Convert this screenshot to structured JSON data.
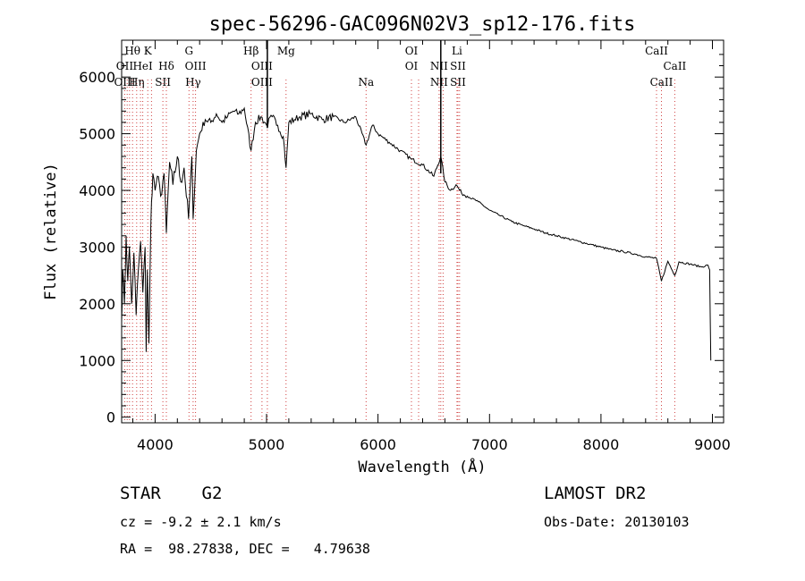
{
  "chart_data": {
    "type": "line",
    "title": "spec-56296-GAC096N02V3_sp12-176.fits",
    "xlabel": "Wavelength (Å)",
    "ylabel": "Flux (relative)",
    "xlim": [
      3700,
      9100
    ],
    "ylim": [
      -100,
      6650
    ],
    "xticks": [
      4000,
      5000,
      6000,
      7000,
      8000,
      9000
    ],
    "yticks": [
      0,
      1000,
      2000,
      3000,
      4000,
      5000,
      6000
    ],
    "grid": false,
    "series": [
      {
        "x": [
          3700,
          3710,
          3725,
          3740,
          3755,
          3770,
          3790,
          3810,
          3830,
          3850,
          3870,
          3890,
          3910,
          3920,
          3930,
          3945,
          3960,
          3968,
          3980,
          4000,
          4020,
          4050,
          4080,
          4101,
          4130,
          4160,
          4200,
          4230,
          4260,
          4300,
          4330,
          4341,
          4370,
          4400,
          4450,
          4500,
          4550,
          4600,
          4650,
          4700,
          4750,
          4800,
          4861,
          4900,
          4950,
          5000,
          5050,
          5100,
          5150,
          5175,
          5200,
          5250,
          5300,
          5400,
          5500,
          5600,
          5700,
          5800,
          5893,
          5950,
          6000,
          6100,
          6200,
          6300,
          6400,
          6500,
          6563,
          6600,
          6650,
          6700,
          6750,
          6800,
          6900,
          7000,
          7100,
          7200,
          7300,
          7400,
          7500,
          7600,
          7700,
          7800,
          7900,
          8000,
          8100,
          8200,
          8300,
          8400,
          8498,
          8542,
          8600,
          8662,
          8700,
          8800,
          8900,
          8960,
          8975,
          8985
        ],
        "y": [
          1700,
          2600,
          2000,
          3200,
          2400,
          3000,
          2000,
          2900,
          1800,
          2600,
          3100,
          2200,
          3000,
          1150,
          2600,
          1300,
          3200,
          3800,
          4300,
          4000,
          4250,
          3900,
          4300,
          3250,
          4500,
          4100,
          4600,
          4150,
          4400,
          3500,
          4600,
          3500,
          4700,
          5000,
          5250,
          5200,
          5350,
          5200,
          5300,
          5400,
          5350,
          5450,
          4700,
          5200,
          5300,
          5150,
          5300,
          5150,
          4950,
          4400,
          5200,
          5250,
          5300,
          5350,
          5250,
          5300,
          5200,
          5300,
          4800,
          5150,
          5000,
          4850,
          4700,
          4550,
          4450,
          4250,
          4600,
          4150,
          4000,
          4100,
          3950,
          3900,
          3800,
          3650,
          3550,
          3450,
          3380,
          3320,
          3250,
          3200,
          3150,
          3100,
          3050,
          3000,
          2950,
          2920,
          2880,
          2830,
          2800,
          2400,
          2750,
          2500,
          2740,
          2700,
          2650,
          2680,
          2600,
          1000
        ]
      }
    ],
    "emission_spikes": [
      {
        "x": 5007,
        "y": 6650
      },
      {
        "x": 6563,
        "y": 6650
      }
    ],
    "spectral_lines": [
      {
        "label": "Hθ",
        "x": 3798,
        "row": 1
      },
      {
        "label": "OII",
        "x": 3727,
        "row": 2
      },
      {
        "label": "OIII",
        "x": 3728,
        "row": 3
      },
      {
        "label": "HeI",
        "x": 3889,
        "row": 2
      },
      {
        "label": "Hη",
        "x": 3835,
        "row": 3
      },
      {
        "label": "K",
        "x": 3934,
        "row": 1
      },
      {
        "label": "Hδ",
        "x": 4101,
        "row": 2
      },
      {
        "label": "SII",
        "x": 4070,
        "row": 3
      },
      {
        "label": "G",
        "x": 4304,
        "row": 1
      },
      {
        "label": "OIII",
        "x": 4363,
        "row": 2
      },
      {
        "label": "Hγ",
        "x": 4341,
        "row": 3
      },
      {
        "label": "Hβ",
        "x": 4861,
        "row": 1
      },
      {
        "label": "OIII",
        "x": 4959,
        "row": 2
      },
      {
        "label": "OIII",
        "x": 4959,
        "row": 3
      },
      {
        "label": "Mg",
        "x": 5175,
        "row": 1
      },
      {
        "label": "Na",
        "x": 5893,
        "row": 3
      },
      {
        "label": "OI",
        "x": 6300,
        "row": 1
      },
      {
        "label": "OI",
        "x": 6300,
        "row": 2
      },
      {
        "label": "NII",
        "x": 6548,
        "row": 2
      },
      {
        "label": "NII",
        "x": 6548,
        "row": 3
      },
      {
        "label": "Li",
        "x": 6708,
        "row": 1
      },
      {
        "label": "SII",
        "x": 6717,
        "row": 2
      },
      {
        "label": "SII",
        "x": 6717,
        "row": 3
      },
      {
        "label": "CaII",
        "x": 8498,
        "row": 1
      },
      {
        "label": "CaII",
        "x": 8662,
        "row": 2
      },
      {
        "label": "CaII",
        "x": 8542,
        "row": 3
      }
    ],
    "spectral_line_positions": [
      3727,
      3750,
      3771,
      3798,
      3835,
      3869,
      3889,
      3934,
      3968,
      4070,
      4101,
      4304,
      4341,
      4363,
      4861,
      4959,
      5007,
      5175,
      5893,
      6300,
      6364,
      6548,
      6563,
      6584,
      6708,
      6717,
      6731,
      8498,
      8542,
      8662
    ]
  },
  "info": {
    "object_class": "STAR",
    "subclass": "G2",
    "redshift": "cz = -9.2 ± 2.1 km/s",
    "coordinates": "RA =  98.27838, DEC =   4.79638",
    "survey": "LAMOST DR2",
    "obs_date": "Obs-Date: 20130103"
  }
}
